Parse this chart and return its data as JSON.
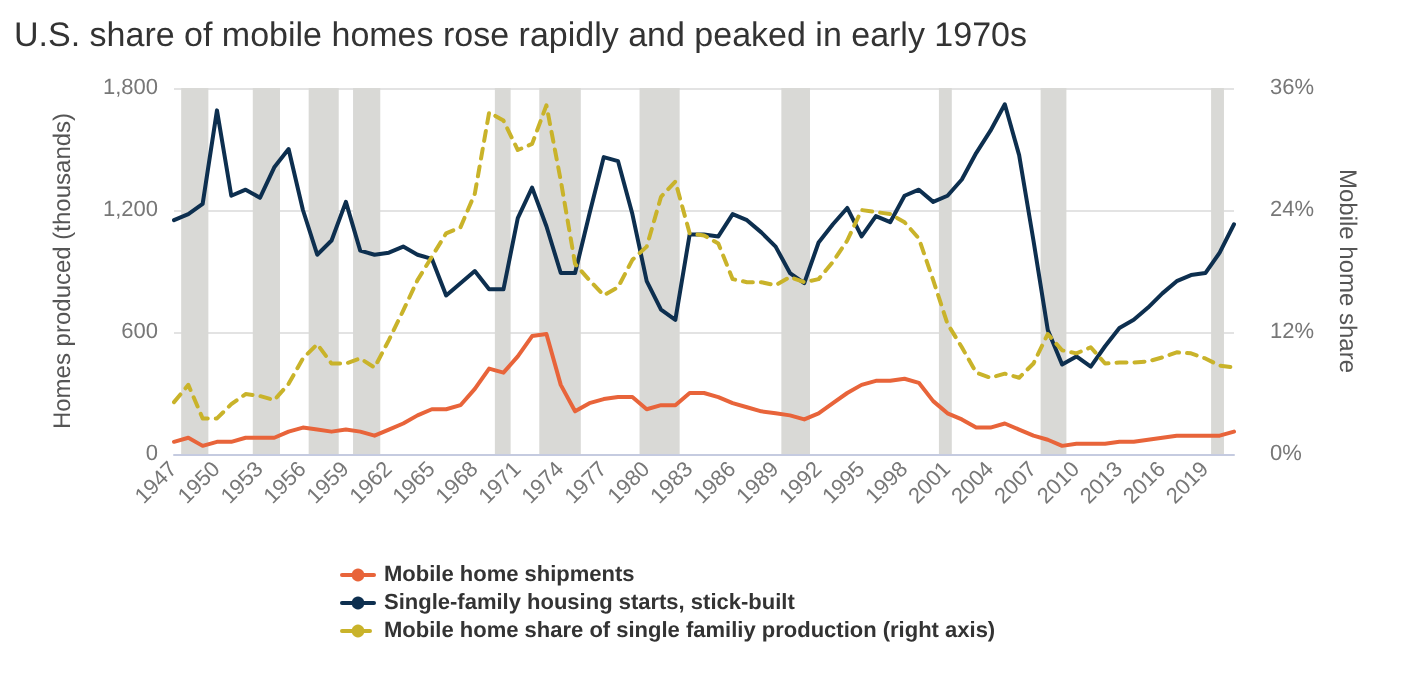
{
  "chart_data": {
    "type": "line",
    "title": "U.S. share of mobile homes rose rapidly and peaked in early 1970s",
    "ylabel": "Homes produced (thousands)",
    "y2label": "Mobile home share",
    "x": [
      1947,
      1948,
      1949,
      1950,
      1951,
      1952,
      1953,
      1954,
      1955,
      1956,
      1957,
      1958,
      1959,
      1960,
      1961,
      1962,
      1963,
      1964,
      1965,
      1966,
      1967,
      1968,
      1969,
      1970,
      1971,
      1972,
      1973,
      1974,
      1975,
      1976,
      1977,
      1978,
      1979,
      1980,
      1981,
      1982,
      1983,
      1984,
      1985,
      1986,
      1987,
      1988,
      1989,
      1990,
      1991,
      1992,
      1993,
      1994,
      1995,
      1996,
      1997,
      1998,
      1999,
      2000,
      2001,
      2002,
      2003,
      2004,
      2005,
      2006,
      2007,
      2008,
      2009,
      2010,
      2011,
      2012,
      2013,
      2014,
      2015,
      2016,
      2017,
      2018,
      2019,
      2020,
      2021
    ],
    "series": [
      {
        "name": "Mobile home shipments",
        "color": "#e8643a",
        "line_style": "solid",
        "values": [
          60,
          80,
          40,
          60,
          60,
          80,
          80,
          80,
          110,
          130,
          120,
          110,
          120,
          110,
          90,
          120,
          150,
          190,
          220,
          220,
          240,
          320,
          420,
          400,
          480,
          580,
          590,
          340,
          210,
          250,
          270,
          280,
          280,
          220,
          240,
          240,
          300,
          300,
          280,
          250,
          230,
          210,
          200,
          190,
          170,
          200,
          250,
          300,
          340,
          360,
          360,
          370,
          350,
          260,
          200,
          170,
          130,
          130,
          150,
          120,
          90,
          70,
          40,
          50,
          50,
          50,
          60,
          60,
          70,
          80,
          90,
          90,
          90,
          90,
          110
        ]
      },
      {
        "name": "Single-family housing starts, stick-built",
        "color": "#0d2f4f",
        "line_style": "solid",
        "values": [
          1150,
          1180,
          1230,
          1690,
          1270,
          1300,
          1260,
          1410,
          1500,
          1200,
          980,
          1050,
          1240,
          1000,
          980,
          990,
          1020,
          980,
          960,
          780,
          840,
          900,
          810,
          810,
          1160,
          1310,
          1120,
          890,
          890,
          1180,
          1460,
          1440,
          1180,
          850,
          710,
          660,
          1080,
          1080,
          1070,
          1180,
          1150,
          1090,
          1020,
          890,
          840,
          1040,
          1130,
          1210,
          1070,
          1170,
          1140,
          1270,
          1300,
          1240,
          1270,
          1350,
          1480,
          1590,
          1720,
          1470,
          1050,
          610,
          440,
          480,
          430,
          530,
          620,
          660,
          720,
          790,
          850,
          880,
          890,
          990,
          1130
        ]
      },
      {
        "name": "Mobile home share of single familiy production (right axis)",
        "color": "#c9b32a",
        "line_style": "dashed",
        "axis": "y2",
        "values": [
          5.1,
          6.8,
          3.5,
          3.5,
          4.9,
          5.9,
          5.7,
          5.3,
          6.9,
          9.4,
          10.8,
          8.9,
          8.9,
          9.4,
          8.5,
          11.2,
          14.1,
          17.1,
          19.4,
          21.7,
          22.3,
          25.6,
          33.6,
          32.8,
          29.9,
          30.5,
          34.3,
          26.9,
          18.7,
          17.1,
          15.6,
          16.4,
          19.1,
          20.4,
          25.3,
          26.8,
          21.7,
          21.5,
          20.7,
          17.2,
          16.9,
          16.9,
          16.6,
          17.4,
          16.9,
          17.2,
          18.9,
          21.0,
          24.0,
          23.8,
          23.6,
          22.8,
          21.2,
          17.1,
          12.8,
          10.5,
          8.0,
          7.5,
          7.9,
          7.5,
          8.9,
          11.8,
          10.2,
          9.9,
          10.5,
          8.9,
          9.0,
          9.0,
          9.1,
          9.5,
          10.0,
          9.9,
          9.4,
          8.7,
          8.5
        ]
      }
    ],
    "xlim": [
      1947,
      2021
    ],
    "xticks": [
      1947,
      1950,
      1953,
      1956,
      1959,
      1962,
      1965,
      1968,
      1971,
      1974,
      1977,
      1980,
      1983,
      1986,
      1989,
      1992,
      1995,
      1998,
      2001,
      2004,
      2007,
      2010,
      2013,
      2016,
      2019
    ],
    "ylim": [
      0,
      1800
    ],
    "yticks": [
      0,
      600,
      {
        "value": 1200,
        "label": "1,200"
      },
      {
        "value": 1800,
        "label": "1,800"
      }
    ],
    "y2lim": [
      0,
      36
    ],
    "y2ticks": [
      {
        "value": 0,
        "label": "0%"
      },
      {
        "value": 12,
        "label": "12%"
      },
      {
        "value": 24,
        "label": "24%"
      },
      {
        "value": 36,
        "label": "36%"
      }
    ],
    "bands": [
      {
        "axis": "x",
        "from": 1947.5,
        "to": 1949.4,
        "color": "#d9d9d6"
      },
      {
        "axis": "x",
        "from": 1952.5,
        "to": 1954.4,
        "color": "#d9d9d6"
      },
      {
        "axis": "x",
        "from": 1956.4,
        "to": 1958.5,
        "color": "#d9d9d6"
      },
      {
        "axis": "x",
        "from": 1959.5,
        "to": 1961.4,
        "color": "#d9d9d6"
      },
      {
        "axis": "x",
        "from": 1969.4,
        "to": 1970.5,
        "color": "#d9d9d6"
      },
      {
        "axis": "x",
        "from": 1972.5,
        "to": 1975.4,
        "color": "#d9d9d6"
      },
      {
        "axis": "x",
        "from": 1979.5,
        "to": 1982.3,
        "color": "#d9d9d6"
      },
      {
        "axis": "x",
        "from": 1989.4,
        "to": 1991.4,
        "color": "#d9d9d6"
      },
      {
        "axis": "x",
        "from": 2000.4,
        "to": 2001.3,
        "color": "#d9d9d6"
      },
      {
        "axis": "x",
        "from": 2007.5,
        "to": 2009.3,
        "color": "#d9d9d6"
      },
      {
        "axis": "x",
        "from": 2019.4,
        "to": 2020.3,
        "color": "#d9d9d6"
      }
    ],
    "grid": "y",
    "legend": "bottom",
    "marker": "none"
  }
}
